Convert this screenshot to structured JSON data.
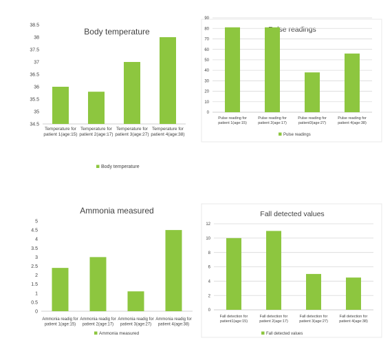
{
  "chart_data": [
    {
      "type": "bar",
      "title": "Body temperature",
      "categories": [
        [
          "Temperature for",
          "patient 1(age:15)"
        ],
        [
          "Temperature for",
          "patient 2(age:17)"
        ],
        [
          "Temperature for",
          "patient 3(age:27)"
        ],
        [
          "Temperature for",
          "patient 4(age:38)"
        ]
      ],
      "series": [
        {
          "name": "Body temperature",
          "values": [
            36.0,
            35.8,
            37.0,
            38.0
          ]
        }
      ],
      "ylim": [
        34.5,
        38.5
      ],
      "yticks": [
        "34.5",
        "35",
        "35.5",
        "36",
        "36.5",
        "37",
        "37.5",
        "38",
        "38.5"
      ],
      "grid": false,
      "legend": "bottom",
      "color": "#8dc63f"
    },
    {
      "type": "bar",
      "title": "Pulse readings",
      "categories": [
        [
          "Pulse reading for",
          "patient 1(age:15)"
        ],
        [
          "Pulse reading for",
          "patient 2(age:17)"
        ],
        [
          "Pulse reading for",
          "patient3(age:27)"
        ],
        [
          "Pulse reading for",
          "patient 4(age:38)"
        ]
      ],
      "series": [
        {
          "name": "Pulse readings",
          "values": [
            81,
            81,
            38,
            56
          ]
        }
      ],
      "ylim": [
        0,
        90
      ],
      "yticks": [
        "0",
        "10",
        "20",
        "30",
        "40",
        "50",
        "60",
        "70",
        "80",
        "90"
      ],
      "grid": true,
      "legend": "bottom",
      "color": "#8dc63f"
    },
    {
      "type": "bar",
      "title": "Ammonia measured",
      "categories": [
        [
          "Ammonia readig for",
          "patient 1(age:15)"
        ],
        [
          "Ammonia readig for",
          "patient 2(age:17)"
        ],
        [
          "Ammonia readig for",
          "patient 3(age:27)"
        ],
        [
          "Ammonia readig for",
          "patient 4(age:38)"
        ]
      ],
      "series": [
        {
          "name": "Ammonia measured",
          "values": [
            2.4,
            3.0,
            1.1,
            4.5
          ]
        }
      ],
      "ylim": [
        0,
        5
      ],
      "yticks": [
        "0",
        "0.5",
        "1",
        "1.5",
        "2",
        "2.5",
        "3",
        "3.5",
        "4",
        "4.5",
        "5"
      ],
      "grid": false,
      "legend": "bottom",
      "color": "#8dc63f"
    },
    {
      "type": "bar",
      "title": "Fall detected values",
      "categories": [
        [
          "Fall detection for",
          "patient1(age:15)"
        ],
        [
          "Fall detection for",
          "patient 2(age:17)"
        ],
        [
          "Fall detection for",
          "patient 3(age:27)"
        ],
        [
          "Fall detection for",
          "patient 4(age:38)"
        ]
      ],
      "series": [
        {
          "name": "Fall detected values",
          "values": [
            10,
            11,
            5,
            4.5
          ]
        }
      ],
      "ylim": [
        0,
        12
      ],
      "yticks": [
        "0",
        "2",
        "4",
        "6",
        "8",
        "10",
        "12"
      ],
      "grid": true,
      "legend": "bottom",
      "color": "#8dc63f"
    }
  ]
}
